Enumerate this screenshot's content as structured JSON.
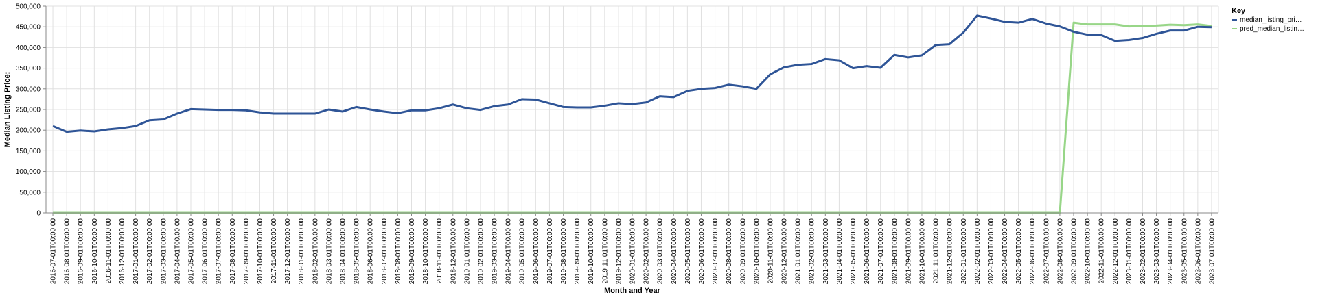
{
  "chart_data": {
    "type": "line",
    "xlabel": "Month and Year",
    "ylabel": "Median Listing Price:",
    "ylim": [
      0,
      500000
    ],
    "y_ticks": [
      "0",
      "50,000",
      "100,000",
      "150,000",
      "200,000",
      "250,000",
      "300,000",
      "350,000",
      "400,000",
      "450,000",
      "500,000"
    ],
    "grid": true,
    "legend_placement": "top-right",
    "legend_title": "Key",
    "x": [
      "2016-07-01T00:00:00",
      "2016-08-01T00:00:00",
      "2016-09-01T00:00:00",
      "2016-10-01T00:00:00",
      "2016-11-01T00:00:00",
      "2016-12-01T00:00:00",
      "2017-01-01T00:00:00",
      "2017-02-01T00:00:00",
      "2017-03-01T00:00:00",
      "2017-04-01T00:00:00",
      "2017-05-01T00:00:00",
      "2017-06-01T00:00:00",
      "2017-07-01T00:00:00",
      "2017-08-01T00:00:00",
      "2017-09-01T00:00:00",
      "2017-10-01T00:00:00",
      "2017-11-01T00:00:00",
      "2017-12-01T00:00:00",
      "2018-01-01T00:00:00",
      "2018-02-01T00:00:00",
      "2018-03-01T00:00:00",
      "2018-04-01T00:00:00",
      "2018-05-01T00:00:00",
      "2018-06-01T00:00:00",
      "2018-07-01T00:00:00",
      "2018-08-01T00:00:00",
      "2018-09-01T00:00:00",
      "2018-10-01T00:00:00",
      "2018-11-01T00:00:00",
      "2018-12-01T00:00:00",
      "2019-01-01T00:00:00",
      "2019-02-01T00:00:00",
      "2019-03-01T00:00:00",
      "2019-04-01T00:00:00",
      "2019-05-01T00:00:00",
      "2019-06-01T00:00:00",
      "2019-07-01T00:00:00",
      "2019-08-01T00:00:00",
      "2019-09-01T00:00:00",
      "2019-10-01T00:00:00",
      "2019-11-01T00:00:00",
      "2019-12-01T00:00:00",
      "2020-01-01T00:00:00",
      "2020-02-01T00:00:00",
      "2020-03-01T00:00:00",
      "2020-04-01T00:00:00",
      "2020-05-01T00:00:00",
      "2020-06-01T00:00:00",
      "2020-07-01T00:00:00",
      "2020-08-01T00:00:00",
      "2020-09-01T00:00:00",
      "2020-10-01T00:00:00",
      "2020-11-01T00:00:00",
      "2020-12-01T00:00:00",
      "2021-01-01T00:00:00",
      "2021-02-01T00:00:00",
      "2021-03-01T00:00:00",
      "2021-04-01T00:00:00",
      "2021-05-01T00:00:00",
      "2021-06-01T00:00:00",
      "2021-07-01T00:00:00",
      "2021-08-01T00:00:00",
      "2021-09-01T00:00:00",
      "2021-10-01T00:00:00",
      "2021-11-01T00:00:00",
      "2021-12-01T00:00:00",
      "2022-01-01T00:00:00",
      "2022-02-01T00:00:00",
      "2022-03-01T00:00:00",
      "2022-04-01T00:00:00",
      "2022-05-01T00:00:00",
      "2022-06-01T00:00:00",
      "2022-07-01T00:00:00",
      "2022-08-01T00:00:00",
      "2022-09-01T00:00:00",
      "2022-10-01T00:00:00",
      "2022-11-01T00:00:00",
      "2022-12-01T00:00:00",
      "2023-01-01T00:00:00",
      "2023-02-01T00:00:00",
      "2023-03-01T00:00:00",
      "2023-04-01T00:00:00",
      "2023-05-01T00:00:00",
      "2023-06-01T00:00:00",
      "2023-07-01T00:00:00"
    ],
    "series": [
      {
        "name": "median_listing_pri…",
        "color": "#2f5597",
        "values": [
          210000,
          196000,
          199000,
          197000,
          202000,
          205000,
          210000,
          224000,
          226000,
          240000,
          251000,
          250000,
          249000,
          249000,
          248000,
          243000,
          240000,
          240000,
          240000,
          240000,
          250000,
          245000,
          256000,
          250000,
          245000,
          241000,
          248000,
          248000,
          253000,
          262000,
          253000,
          249000,
          258000,
          262000,
          275000,
          274000,
          265000,
          256000,
          255000,
          255000,
          259000,
          265000,
          263000,
          267000,
          282000,
          280000,
          295000,
          300000,
          302000,
          310000,
          306000,
          300000,
          335000,
          352000,
          358000,
          360000,
          372000,
          369000,
          350000,
          355000,
          351000,
          382000,
          376000,
          381000,
          406000,
          408000,
          436000,
          477000,
          470000,
          462000,
          460000,
          469000,
          458000,
          451000,
          438000,
          431000,
          430000,
          416000,
          418000,
          423000,
          433000,
          441000,
          441000,
          450000,
          449000
        ]
      },
      {
        "name": "pred_median_listin…",
        "color": "#98d688",
        "values": [
          0,
          0,
          0,
          0,
          0,
          0,
          0,
          0,
          0,
          0,
          0,
          0,
          0,
          0,
          0,
          0,
          0,
          0,
          0,
          0,
          0,
          0,
          0,
          0,
          0,
          0,
          0,
          0,
          0,
          0,
          0,
          0,
          0,
          0,
          0,
          0,
          0,
          0,
          0,
          0,
          0,
          0,
          0,
          0,
          0,
          0,
          0,
          0,
          0,
          0,
          0,
          0,
          0,
          0,
          0,
          0,
          0,
          0,
          0,
          0,
          0,
          0,
          0,
          0,
          0,
          0,
          0,
          0,
          0,
          0,
          0,
          0,
          0,
          0,
          460000,
          456000,
          456000,
          456000,
          451000,
          452000,
          453000,
          455000,
          454000,
          456000,
          452000
        ]
      }
    ]
  }
}
